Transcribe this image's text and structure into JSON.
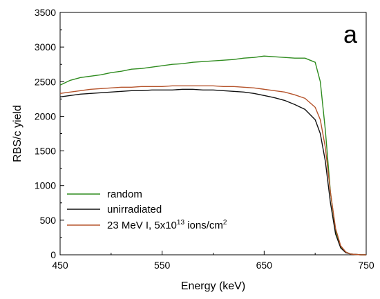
{
  "chart_data": {
    "type": "line",
    "panel_label": "a",
    "xlabel": "Energy (keV)",
    "ylabel": "RBS/c yield",
    "xlim": [
      450,
      750
    ],
    "ylim": [
      0,
      3500
    ],
    "x_ticks": [
      450,
      550,
      650,
      750
    ],
    "y_ticks": [
      0,
      500,
      1000,
      1500,
      2000,
      2500,
      3000,
      3500
    ],
    "grid": false,
    "legend_position": "bottom-left",
    "series": [
      {
        "name": "random",
        "color": "#2e8b1e",
        "x": [
          450,
          460,
          470,
          480,
          490,
          500,
          510,
          520,
          530,
          540,
          550,
          560,
          570,
          580,
          590,
          600,
          610,
          620,
          630,
          640,
          650,
          660,
          670,
          680,
          690,
          700,
          705,
          710,
          715,
          720,
          725,
          730,
          735,
          740,
          745,
          750
        ],
        "y": [
          2450,
          2520,
          2560,
          2580,
          2600,
          2630,
          2650,
          2680,
          2690,
          2710,
          2730,
          2750,
          2760,
          2780,
          2790,
          2800,
          2810,
          2820,
          2840,
          2850,
          2870,
          2860,
          2850,
          2840,
          2840,
          2780,
          2500,
          1800,
          900,
          350,
          120,
          40,
          10,
          5,
          0,
          0
        ]
      },
      {
        "name": "unirradiated",
        "color": "#111111",
        "x": [
          450,
          460,
          470,
          480,
          490,
          500,
          510,
          520,
          530,
          540,
          550,
          560,
          570,
          580,
          590,
          600,
          610,
          620,
          630,
          640,
          650,
          660,
          670,
          680,
          690,
          700,
          705,
          710,
          715,
          720,
          725,
          730,
          735,
          740,
          745,
          750
        ],
        "y": [
          2280,
          2300,
          2320,
          2330,
          2340,
          2350,
          2360,
          2370,
          2370,
          2380,
          2380,
          2380,
          2390,
          2390,
          2380,
          2380,
          2370,
          2360,
          2350,
          2330,
          2300,
          2270,
          2230,
          2170,
          2100,
          1950,
          1750,
          1350,
          750,
          300,
          100,
          30,
          10,
          5,
          0,
          0
        ]
      },
      {
        "name": "23 MeV I, 5x10^13 ions/cm^2",
        "color": "#b5532b",
        "x": [
          450,
          460,
          470,
          480,
          490,
          500,
          510,
          520,
          530,
          540,
          550,
          560,
          570,
          580,
          590,
          600,
          610,
          620,
          630,
          640,
          650,
          660,
          670,
          680,
          690,
          700,
          705,
          710,
          715,
          720,
          725,
          730,
          735,
          740,
          745,
          750
        ],
        "y": [
          2330,
          2350,
          2370,
          2390,
          2400,
          2410,
          2420,
          2420,
          2430,
          2430,
          2430,
          2440,
          2440,
          2440,
          2440,
          2440,
          2430,
          2430,
          2420,
          2410,
          2390,
          2370,
          2350,
          2310,
          2260,
          2130,
          1950,
          1550,
          900,
          380,
          130,
          40,
          10,
          5,
          0,
          0
        ]
      }
    ],
    "legend": [
      {
        "label": "random",
        "color": "#2e8b1e"
      },
      {
        "label": "unirradiated",
        "color": "#111111"
      },
      {
        "label_main": "23 MeV I, 5x10",
        "sup1": "13",
        "label_mid": " ions/cm",
        "sup2": "2",
        "color": "#b5532b"
      }
    ]
  }
}
